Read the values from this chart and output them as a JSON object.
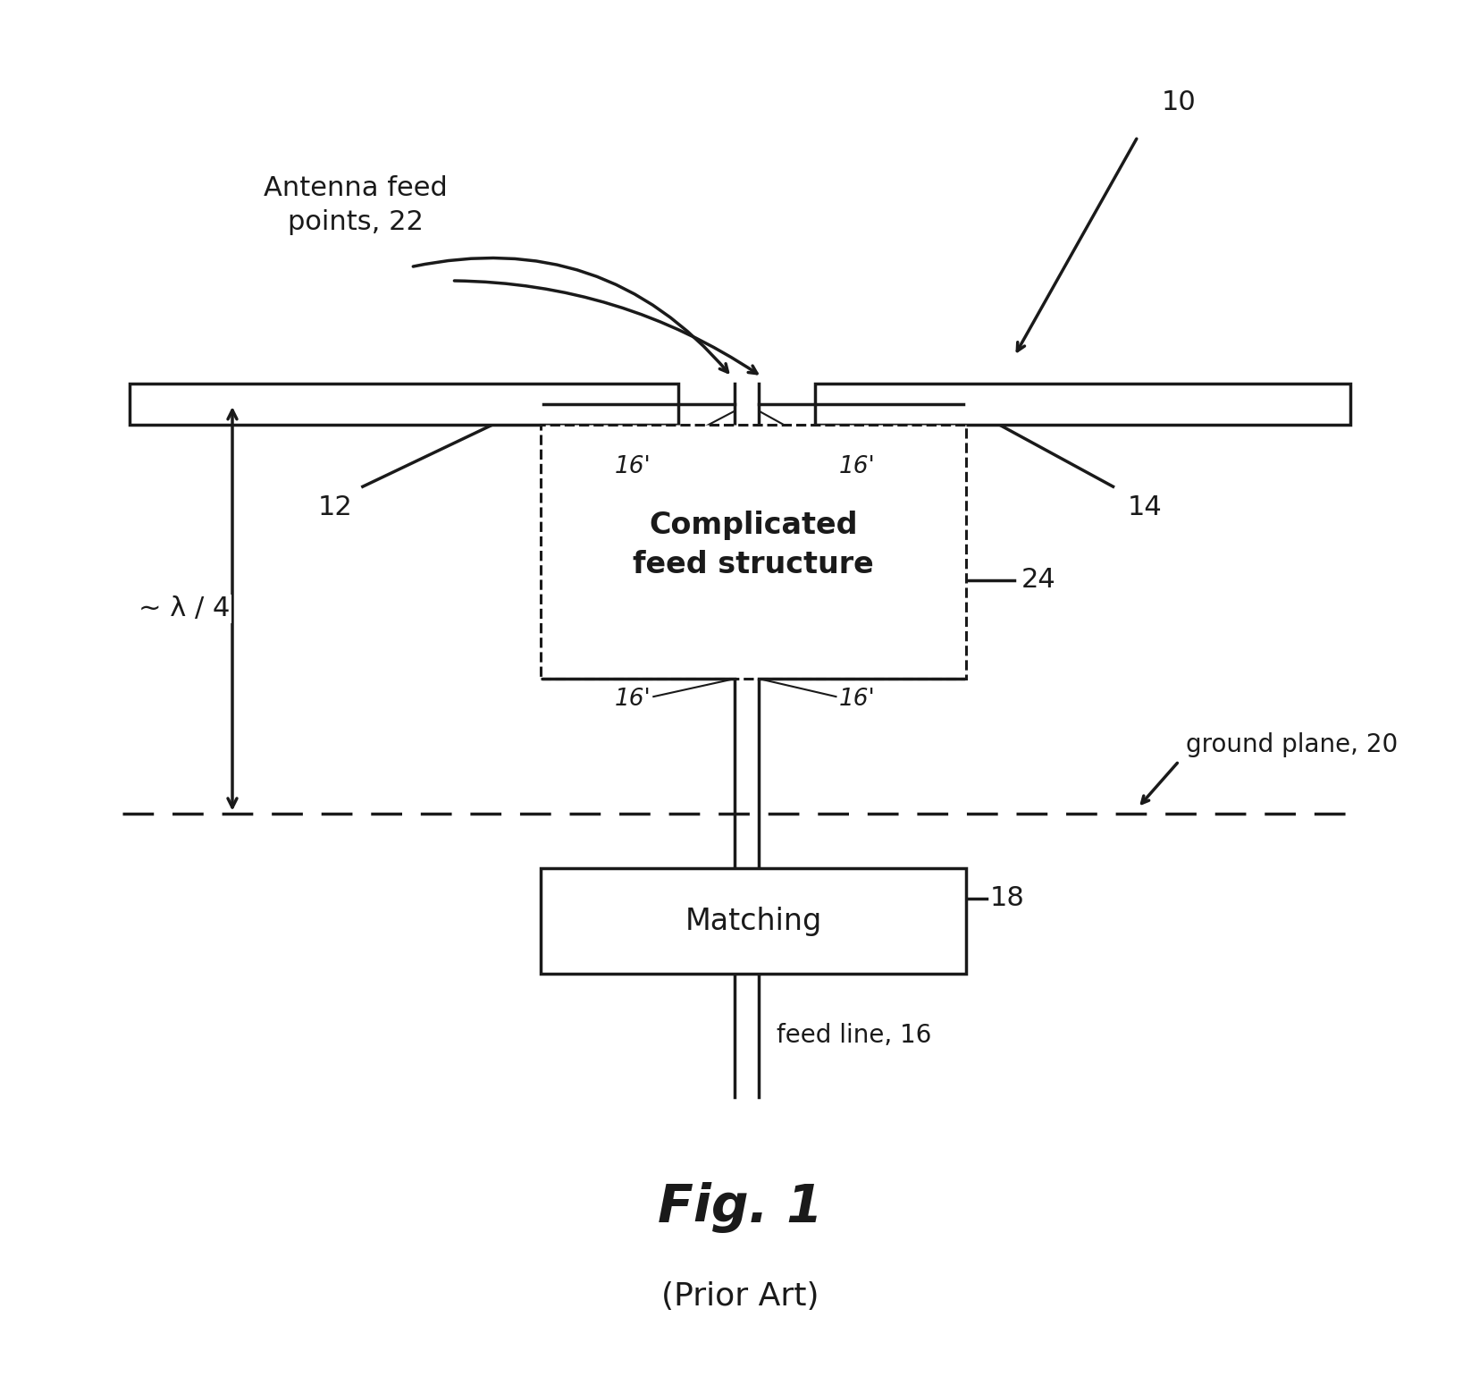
{
  "bg_color": "#ffffff",
  "line_color": "#1a1a1a",
  "fig_width": 16.56,
  "fig_height": 15.49,
  "title": "Fig. 1",
  "subtitle": "(Prior Art)",
  "antenna_label_line1": "Antenna feed",
  "antenna_label_line2": "points, 22",
  "label_10": "10",
  "label_12": "12",
  "label_14": "14",
  "label_16_prime_top_left": "16'",
  "label_16_prime_top_right": "16'",
  "label_16_prime_bot_left": "16'",
  "label_16_prime_bot_right": "16'",
  "label_24": "24",
  "label_18": "18",
  "label_20": "ground plane, 20",
  "complicated_line1": "Complicated",
  "complicated_line2": "feed structure",
  "matching_text": "Matching",
  "feed_line_text": "feed line, 16",
  "lambda_label": "~ λ / 4"
}
